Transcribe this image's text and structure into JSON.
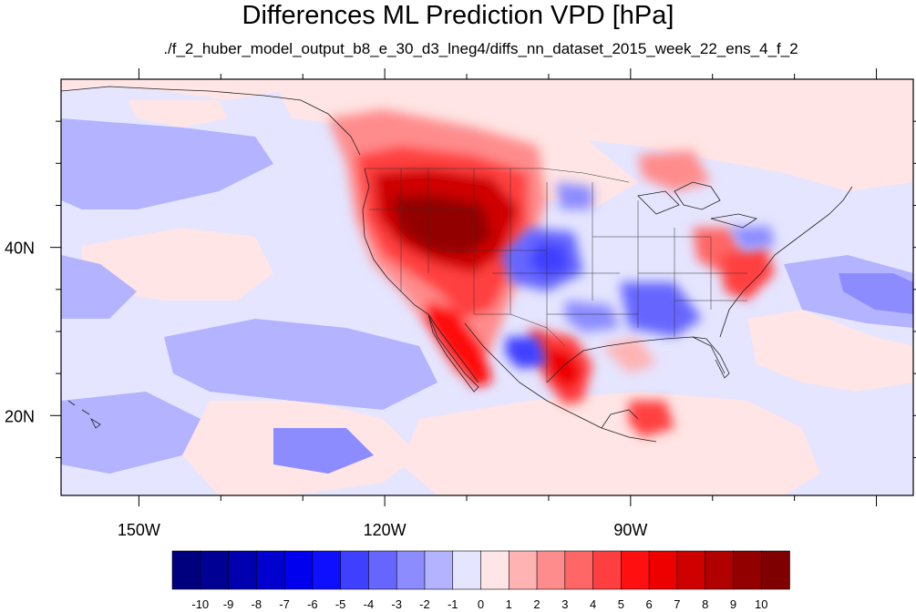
{
  "title": "Differences ML Prediction VPD [hPa]",
  "subtitle": "./f_2_huber_model_output_b8_e_30_d3_lneg4/diffs_nn_dataset_2015_week_22_ens_4_f_2",
  "axes": {
    "lon_ticks": [
      {
        "label": "150W",
        "value": -150
      },
      {
        "label": "120W",
        "value": -120
      },
      {
        "label": "90W",
        "value": -90
      }
    ],
    "lat_ticks": [
      {
        "label": "40N",
        "value": 40
      },
      {
        "label": "20N",
        "value": 20
      }
    ],
    "lon_range": [
      -159.5,
      -55.5
    ],
    "lat_range": [
      10.5,
      60
    ]
  },
  "colorbar": {
    "labels": [
      "-10",
      "-9",
      "-8",
      "-7",
      "-6",
      "-5",
      "-4",
      "-3",
      "-2",
      "-1",
      "0",
      "1",
      "2",
      "3",
      "4",
      "5",
      "6",
      "7",
      "8",
      "9",
      "10"
    ],
    "colors": [
      "#00007f",
      "#000093",
      "#0000b1",
      "#0000cf",
      "#0000ef",
      "#0f0fff",
      "#3f3fff",
      "#6666ff",
      "#8c8cff",
      "#b3b3ff",
      "#e5e5ff",
      "#ffe5e5",
      "#ffb3b3",
      "#ff8c8c",
      "#ff6666",
      "#ff3f3f",
      "#ff0f0f",
      "#ef0000",
      "#cf0000",
      "#b10000",
      "#930000",
      "#7f0000"
    ]
  },
  "colors": {
    "background_field": "#e5e5ff",
    "positive_light": "#ffe5e5",
    "negative_light": "#b3b3ff"
  }
}
